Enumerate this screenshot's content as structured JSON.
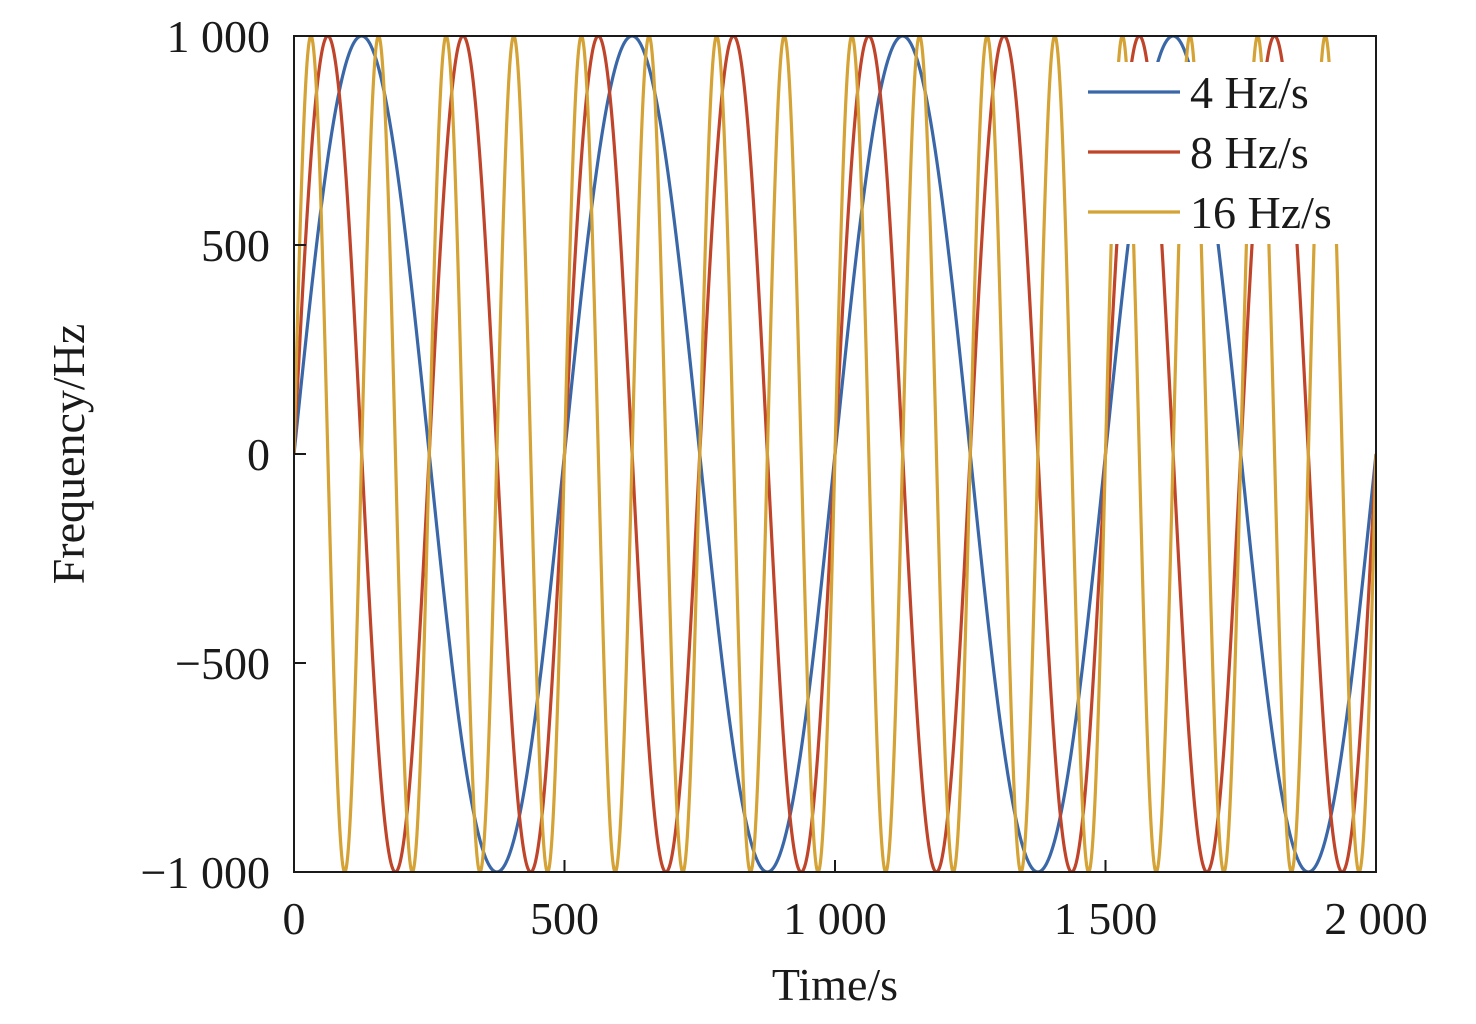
{
  "chart_data": {
    "type": "line",
    "title": "",
    "xlabel": "Time/s",
    "ylabel": "Frequency/Hz",
    "xlim": [
      0,
      2000
    ],
    "ylim": [
      -1000,
      1000
    ],
    "xticks": [
      0,
      500,
      1000,
      1500,
      2000
    ],
    "xtick_labels": [
      "0",
      "500",
      "1 000",
      "1 500",
      "2 000"
    ],
    "yticks": [
      -1000,
      -500,
      0,
      500,
      1000
    ],
    "ytick_labels": [
      "−1 000",
      "−500",
      "0",
      "500",
      "1 000"
    ],
    "grid": false,
    "legend_position": "top-right",
    "series": [
      {
        "name": "4 Hz/s",
        "color": "#3a67a8",
        "amplitude": 1000,
        "period": 500,
        "phase_deg": 0
      },
      {
        "name": "8 Hz/s",
        "color": "#c0442a",
        "amplitude": 1000,
        "period": 250,
        "phase_deg": 0
      },
      {
        "name": "16 Hz/s",
        "color": "#d4a235",
        "amplitude": 1000,
        "period": 125,
        "phase_deg": 0
      }
    ]
  }
}
